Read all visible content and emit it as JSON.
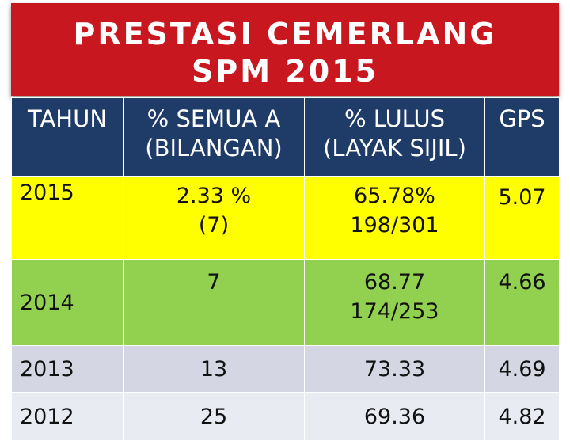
{
  "title": {
    "line1": "PRESTASI CEMERLANG",
    "line2": "SPM 2015"
  },
  "colors": {
    "title_bg": "#c8171e",
    "header_bg": "#1f3b68",
    "row_2015": "#ffff00",
    "row_2014": "#92d050",
    "row_2013": "#d4d7e3",
    "row_2012": "#e9ebf2"
  },
  "table": {
    "headers": {
      "tahun": "TAHUN",
      "semua_a_1": "% SEMUA A",
      "semua_a_2": "(BILANGAN)",
      "lulus_1": "% LULUS",
      "lulus_2": "(LAYAK SIJIL)",
      "gps": "GPS"
    },
    "rows": [
      {
        "year": "2015",
        "semua_a": "2.33 %",
        "semua_a_count": "(7)",
        "lulus": "65.78%",
        "lulus_count": "198/301",
        "gps": "5.07"
      },
      {
        "year": "2014",
        "semua_a": "7",
        "lulus": "68.77",
        "lulus_count": "174/253",
        "gps": "4.66"
      },
      {
        "year": "2013",
        "semua_a": "13",
        "lulus": "73.33",
        "gps": "4.69"
      },
      {
        "year": "2012",
        "semua_a": "25",
        "lulus": "69.36",
        "gps": "4.82"
      }
    ]
  }
}
